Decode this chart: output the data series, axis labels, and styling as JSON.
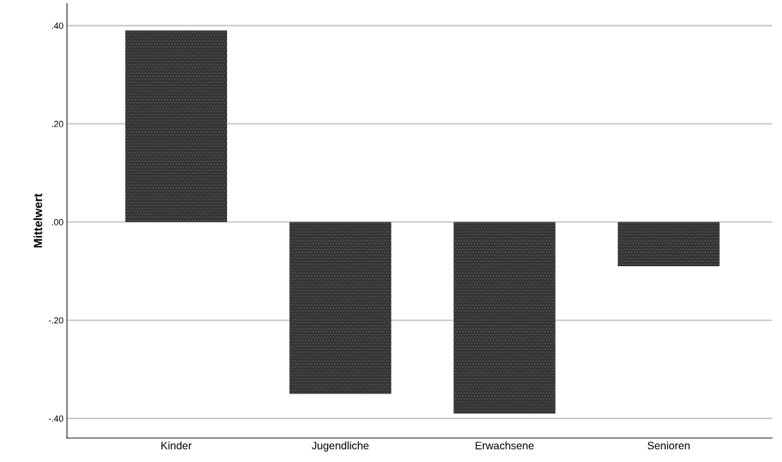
{
  "chart_data": {
    "type": "bar",
    "ylabel": "Mittelwert",
    "categories": [
      "Kinder",
      "Jugendliche",
      "Erwachsene",
      "Senioren"
    ],
    "values": [
      0.39,
      -0.35,
      -0.39,
      -0.09
    ],
    "color": "#333333",
    "ylim": [
      -0.44,
      0.445
    ],
    "yticks": [
      {
        "value": 0.4,
        "label": ".40"
      },
      {
        "value": 0.2,
        "label": ".20"
      },
      {
        "value": 0.0,
        "label": ".00"
      },
      {
        "value": -0.2,
        "label": "-.20"
      },
      {
        "value": -0.4,
        "label": "-.40"
      }
    ],
    "grid": "y"
  }
}
